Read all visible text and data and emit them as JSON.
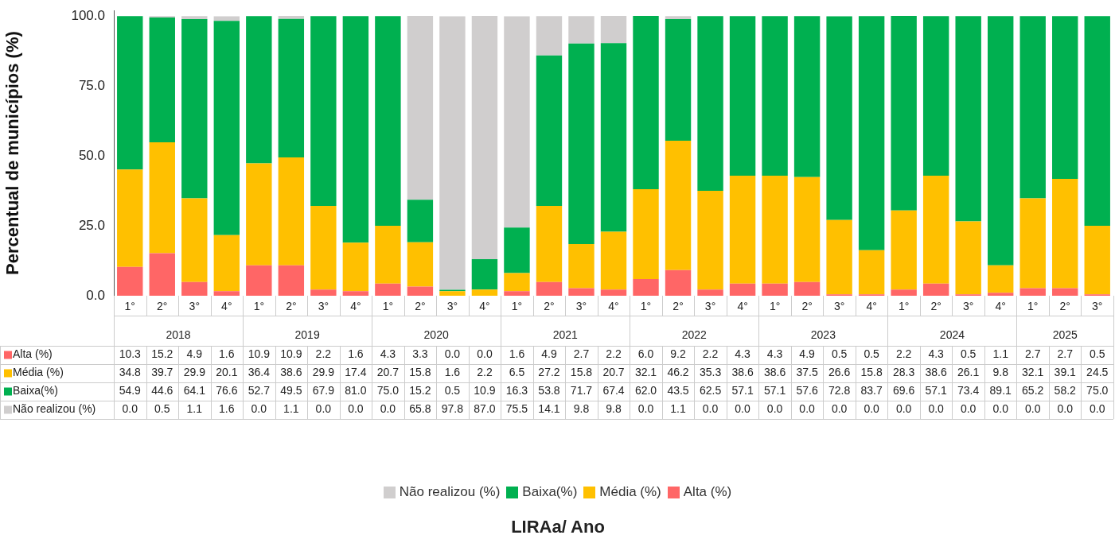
{
  "chart_data": {
    "type": "bar",
    "stacked": true,
    "ylabel": "Percentual de municípios (%)",
    "categories": [
      "1°",
      "2°",
      "3°",
      "4°",
      "1°",
      "2°",
      "3°",
      "4°",
      "1°",
      "2°",
      "3°",
      "4°",
      "1°",
      "2°",
      "3°",
      "4°",
      "1°",
      "2°",
      "3°",
      "4°",
      "1°",
      "2°",
      "3°",
      "4°",
      "1°",
      "2°",
      "3°",
      "4°",
      "1°",
      "2°",
      "3°"
    ],
    "annotations": [
      "2018",
      "2019",
      "2020",
      "2021",
      "2022",
      "2023",
      "2024",
      "2025",
      "LIRAa/ Ano"
    ],
    "series": [
      {
        "name": "Alta (%)",
        "color": "#ff6666",
        "values": [
          10.3,
          15.2,
          4.9,
          1.6,
          10.9,
          10.9,
          2.2,
          1.6,
          4.3,
          3.3,
          0.0,
          0.0,
          1.6,
          4.9,
          2.7,
          2.2,
          6.0,
          9.2,
          2.2,
          4.3,
          4.3,
          4.9,
          0.5,
          0.5,
          2.2,
          4.3,
          0.5,
          1.1,
          2.7,
          2.7,
          0.5
        ],
        "value_labels": [
          "10.3",
          "15.2",
          "4.9",
          "1.6",
          "10.9",
          "10.9",
          "2.2",
          "1.6",
          "4.3",
          "3.3",
          "0.0",
          "0.0",
          "1.6",
          "4.9",
          "2.7",
          "2.2",
          "6.0",
          "9.2",
          "2.2",
          "4.3",
          "4.3",
          "4.9",
          "0.5",
          "0.5",
          "2.2",
          "4.3",
          "0.5",
          "1.1",
          "2.7",
          "2.7",
          "0.5"
        ]
      },
      {
        "name": "Média (%)",
        "color": "#ffc000",
        "values": [
          34.8,
          39.7,
          29.9,
          20.1,
          36.4,
          38.6,
          29.9,
          17.4,
          20.7,
          15.8,
          1.6,
          2.2,
          6.5,
          27.2,
          15.8,
          20.7,
          32.1,
          46.2,
          35.3,
          38.6,
          38.6,
          37.5,
          26.6,
          15.8,
          28.3,
          38.6,
          26.1,
          9.8,
          32.1,
          39.1,
          24.5
        ],
        "value_labels": [
          "34.8",
          "39.7",
          "29.9",
          "20.1",
          "36.4",
          "38.6",
          "29.9",
          "17.4",
          "20.7",
          "15.8",
          "1.6",
          "2.2",
          "6.5",
          "27.2",
          "15.8",
          "20.7",
          "32.1",
          "46.2",
          "35.3",
          "38.6",
          "38.6",
          "37.5",
          "26.6",
          "15.8",
          "28.3",
          "38.6",
          "26.1",
          "9.8",
          "32.1",
          "39.1",
          "24.5"
        ]
      },
      {
        "name": "Baixa(%)",
        "color": "#00b050",
        "values": [
          54.9,
          44.6,
          64.1,
          76.6,
          52.7,
          49.5,
          67.9,
          81.0,
          75.0,
          15.2,
          0.5,
          10.9,
          16.3,
          53.8,
          71.7,
          67.4,
          62.0,
          43.5,
          62.5,
          57.1,
          57.1,
          57.6,
          72.8,
          83.7,
          69.6,
          57.1,
          73.4,
          89.1,
          65.2,
          58.2,
          75.0
        ],
        "value_labels": [
          "54.9",
          "44.6",
          "64.1",
          "76.6",
          "52.7",
          "49.5",
          "67.9",
          "81.0",
          "75.0",
          "15.2",
          "0.5",
          "10.9",
          "16.3",
          "53.8",
          "71.7",
          "67.4",
          "62.0",
          "43.5",
          "62.5",
          "57.1",
          "57.1",
          "57.6",
          "72.8",
          "83.7",
          "69.6",
          "57.1",
          "73.4",
          "89.1",
          "65.2",
          "58.2",
          "75.0"
        ]
      },
      {
        "name": "Não realizou (%)",
        "color": "#d0cece",
        "values": [
          0.0,
          0.5,
          1.1,
          1.6,
          0.0,
          1.1,
          0.0,
          0.0,
          0.0,
          65.8,
          97.8,
          87.0,
          75.5,
          14.1,
          9.8,
          9.8,
          0.0,
          1.1,
          0.0,
          0.0,
          0.0,
          0.0,
          0.0,
          0.0,
          0.0,
          0.0,
          0.0,
          0.0,
          0.0,
          0.0,
          0.0
        ],
        "value_labels": [
          "0.0",
          "0.5",
          "1.1",
          "1.6",
          "0.0",
          "1.1",
          "0.0",
          "0.0",
          "0.0",
          "65.8",
          "97.8",
          "87.0",
          "75.5",
          "14.1",
          "9.8",
          "9.8",
          "0.0",
          "1.1",
          "0.0",
          "0.0",
          "0.0",
          "0.0",
          "0.0",
          "0.0",
          "0.0",
          "0.0",
          "0.0",
          "0.0",
          "0.0",
          "0.0",
          "0.0"
        ]
      }
    ],
    "ylim": [
      0,
      102
    ],
    "yticks": [
      {
        "value": 0,
        "label": "0.0"
      },
      {
        "value": 25,
        "label": "25.0"
      },
      {
        "value": 50,
        "label": "50.0"
      },
      {
        "value": 75,
        "label": "75.0"
      },
      {
        "value": 100,
        "label": "100.0"
      }
    ],
    "legend": "bottom",
    "grid": false
  }
}
